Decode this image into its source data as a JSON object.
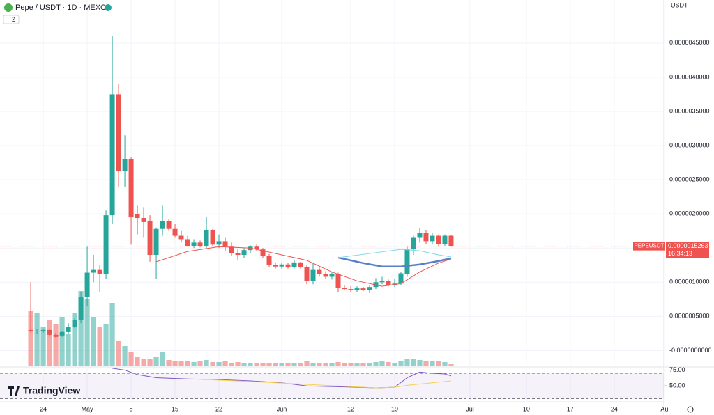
{
  "header": {
    "title": "Pepe / USDT · 1D · MEXC",
    "indicator_count": "2",
    "currency": "USDT",
    "brand": "TradingView"
  },
  "chart_data": {
    "type": "candlestick",
    "x": [
      0,
      1,
      2,
      3,
      4,
      5,
      6,
      7,
      8,
      9,
      10,
      11,
      12,
      13,
      14,
      15,
      16,
      17,
      18,
      19,
      20,
      21,
      22,
      23,
      24,
      25,
      26,
      27,
      28,
      29,
      30,
      31,
      32,
      33,
      34,
      35,
      36,
      37,
      38,
      39,
      40,
      41,
      42,
      43,
      44,
      45,
      46,
      47,
      48,
      49,
      50,
      51,
      52,
      53,
      54,
      55,
      56,
      57,
      58,
      59,
      60,
      61,
      62,
      63,
      64,
      65,
      66,
      67
    ],
    "open": [
      3e-07,
      2.8e-07,
      2.9e-07,
      3e-07,
      2.3e-07,
      2.2e-07,
      2.7e-07,
      3.5e-07,
      4.5e-07,
      7.8e-07,
      1.14e-06,
      1.18e-06,
      1.12e-06,
      1.98e-06,
      3.75e-06,
      2.63e-06,
      2.8e-06,
      2e-06,
      1.94e-06,
      1.89e-06,
      1.4e-06,
      1.78e-06,
      1.89e-06,
      1.78e-06,
      1.68e-06,
      1.63e-06,
      1.53e-06,
      1.58e-06,
      1.53e-06,
      1.76e-06,
      1.55e-06,
      1.6e-06,
      1.52e-06,
      1.43e-06,
      1.4e-06,
      1.47e-06,
      1.52e-06,
      1.48e-06,
      1.39e-06,
      1.25e-06,
      1.23e-06,
      1.26e-06,
      1.22e-06,
      1.29e-06,
      1.22e-06,
      1.02e-06,
      1.18e-06,
      1.12e-06,
      1.08e-06,
      1.12e-06,
      9.2e-07,
      9e-07,
      8.9e-07,
      9.1e-07,
      8.9e-07,
      9.3e-07,
      1e-06,
      1.02e-06,
      9.6e-07,
      9.8e-07,
      1.12e-06,
      1.48e-06,
      1.65e-06,
      1.72e-06,
      1.6e-06,
      1.68e-06,
      1.56e-06,
      1.68e-06
    ],
    "high": [
      1e-06,
      3.2e-07,
      3.2e-07,
      3.1e-07,
      2.6e-07,
      2.9e-07,
      4e-07,
      4.8e-07,
      8.5e-07,
      1.52e-06,
      1.4e-06,
      1.25e-06,
      2.05e-06,
      4.6e-06,
      3.9e-06,
      3.15e-06,
      2.83e-06,
      2.12e-06,
      2.1e-06,
      1.98e-06,
      1.8e-06,
      2.12e-06,
      1.93e-06,
      1.85e-06,
      1.75e-06,
      1.68e-06,
      1.63e-06,
      1.61e-06,
      1.95e-06,
      1.78e-06,
      1.7e-06,
      1.65e-06,
      1.58e-06,
      1.48e-06,
      1.5e-06,
      1.54e-06,
      1.55e-06,
      1.5e-06,
      1.41e-06,
      1.29e-06,
      1.29e-06,
      1.28e-06,
      1.33e-06,
      1.3e-06,
      1.25e-06,
      1.28e-06,
      1.23e-06,
      1.16e-06,
      1.15e-06,
      1.14e-06,
      9.5e-07,
      9.4e-07,
      9.4e-07,
      9.3e-07,
      9.5e-07,
      1.06e-06,
      1.08e-06,
      1.04e-06,
      1.05e-06,
      1.15e-06,
      1.52e-06,
      1.68e-06,
      1.79e-06,
      1.76e-06,
      1.72e-06,
      1.7e-06,
      1.7e-06,
      1.69e-06
    ],
    "low": [
      2.6e-07,
      2.4e-07,
      2.6e-07,
      2e-07,
      1.8e-07,
      2e-07,
      2.5e-07,
      3.3e-07,
      4e-07,
      6.5e-07,
      1e-06,
      8.6e-07,
      1.05e-06,
      1.85e-06,
      2.4e-06,
      2.4e-06,
      1.55e-06,
      1.7e-06,
      1.65e-06,
      1.3e-06,
      1.05e-06,
      1.68e-06,
      1.75e-06,
      1.65e-06,
      1.58e-06,
      1.52e-06,
      1.5e-06,
      1.51e-06,
      1.5e-06,
      1.52e-06,
      1.5e-06,
      1.46e-06,
      1.38e-06,
      1.33e-06,
      1.36e-06,
      1.43e-06,
      1.46e-06,
      1.36e-06,
      1.22e-06,
      1.2e-06,
      1.19e-06,
      1.2e-06,
      1.2e-06,
      1.2e-06,
      9.7e-07,
      9.7e-07,
      1.08e-06,
      1.05e-06,
      1.04e-06,
      8.5e-07,
      8.8e-07,
      8.6e-07,
      8.6e-07,
      8.7e-07,
      8.4e-07,
      9e-07,
      9.7e-07,
      9.4e-07,
      9.3e-07,
      9.6e-07,
      1.08e-06,
      1.4e-06,
      1.58e-06,
      1.56e-06,
      1.55e-06,
      1.52e-06,
      1.53e-06,
      1.52e-06
    ],
    "close": [
      2.8e-07,
      2.9e-07,
      3e-07,
      2.3e-07,
      2e-07,
      2.7e-07,
      3.5e-07,
      4.5e-07,
      7.8e-07,
      1.14e-06,
      1.18e-06,
      1.12e-06,
      1.98e-06,
      3.75e-06,
      2.63e-06,
      2.8e-06,
      1.95e-06,
      1.94e-06,
      1.88e-06,
      1.4e-06,
      1.78e-06,
      1.89e-06,
      1.78e-06,
      1.68e-06,
      1.63e-06,
      1.53e-06,
      1.58e-06,
      1.53e-06,
      1.76e-06,
      1.55e-06,
      1.6e-06,
      1.52e-06,
      1.43e-06,
      1.4e-06,
      1.47e-06,
      1.52e-06,
      1.48e-06,
      1.39e-06,
      1.25e-06,
      1.23e-06,
      1.26e-06,
      1.22e-06,
      1.29e-06,
      1.22e-06,
      1.02e-06,
      1.18e-06,
      1.12e-06,
      1.08e-06,
      1.12e-06,
      9.2e-07,
      9e-07,
      8.9e-07,
      9.1e-07,
      8.9e-07,
      9.3e-07,
      1e-06,
      1.02e-06,
      9.6e-07,
      9.8e-07,
      1.13e-06,
      1.48e-06,
      1.65e-06,
      1.72e-06,
      1.6e-06,
      1.68e-06,
      1.56e-06,
      1.68e-06,
      1.5263e-06
    ],
    "volume": [
      78,
      75,
      55,
      65,
      60,
      70,
      45,
      75,
      107,
      95,
      70,
      55,
      60,
      90,
      35,
      28,
      20,
      12,
      10,
      10,
      13,
      20,
      8,
      7,
      6,
      7,
      5,
      6,
      8,
      5,
      5,
      6,
      4,
      5,
      4,
      4,
      3,
      4,
      4,
      3,
      3,
      3,
      4,
      3,
      6,
      4,
      4,
      3,
      4,
      5,
      4,
      3,
      3,
      4,
      4,
      5,
      6,
      5,
      4,
      6,
      9,
      10,
      8,
      7,
      6,
      6,
      5,
      2
    ],
    "up_color": "#26a69a",
    "down_color": "#ef5350",
    "xlim": [
      -4.9,
      100.9
    ],
    "xticks": [
      {
        "value": 2,
        "label": "24"
      },
      {
        "value": 9,
        "label": "May"
      },
      {
        "value": 16,
        "label": "8"
      },
      {
        "value": 23,
        "label": "15"
      },
      {
        "value": 30,
        "label": "22"
      },
      {
        "value": 40,
        "label": "Jun"
      },
      {
        "value": 51,
        "label": "12"
      },
      {
        "value": 58,
        "label": "19"
      },
      {
        "value": 70,
        "label": "Jul"
      },
      {
        "value": 79,
        "label": "10"
      },
      {
        "value": 86,
        "label": "17"
      },
      {
        "value": 93,
        "label": "24"
      },
      {
        "value": 101,
        "label": "Au"
      }
    ],
    "ylim": [
      -2.2e-07,
      5.13e-06
    ],
    "yticks": [
      {
        "value": 0,
        "label": "-0.0000000000"
      },
      {
        "value": 5e-07,
        "label": "0.0000005000"
      },
      {
        "value": 1e-06,
        "label": "0.0000010000"
      },
      {
        "value": 1.5e-06,
        "label": "0.0000015000"
      },
      {
        "value": 2e-06,
        "label": "0.0000020000"
      },
      {
        "value": 2.5e-06,
        "label": "0.0000025000"
      },
      {
        "value": 3e-06,
        "label": "0.0000030000"
      },
      {
        "value": 3.5e-06,
        "label": "0.0000035000"
      },
      {
        "value": 4e-06,
        "label": "0.0000040000"
      },
      {
        "value": 4.5e-06,
        "label": "0.0000045000"
      }
    ],
    "grid": true,
    "lines": [
      {
        "color": "#ef5350",
        "width": 1,
        "x": [
          20,
          25,
          30,
          35,
          40,
          44,
          48,
          52,
          56,
          59,
          62,
          65,
          67
        ],
        "values": [
          1.3e-06,
          1.45e-06,
          1.52e-06,
          1.5e-06,
          1.4e-06,
          1.32e-06,
          1.15e-06,
          1.02e-06,
          9.4e-07,
          9.8e-07,
          1.15e-06,
          1.28e-06,
          1.34e-06
        ]
      },
      {
        "color": "#5b7fc7",
        "width": 2.5,
        "x": [
          49,
          53,
          56,
          59,
          62,
          65,
          67
        ],
        "values": [
          1.36e-06,
          1.28e-06,
          1.23e-06,
          1.23e-06,
          1.26e-06,
          1.31e-06,
          1.35e-06
        ]
      },
      {
        "color": "#7fd8e6",
        "width": 1,
        "x": [
          49,
          54,
          59,
          62,
          65,
          67
        ],
        "values": [
          1.36e-06,
          1.42e-06,
          1.48e-06,
          1.46e-06,
          1.4e-06,
          1.37e-06
        ]
      }
    ],
    "last_price": {
      "value": 1.5263e-06,
      "label": "0.0000015263"
    },
    "symbol": "PEPEUSDT",
    "countdown": "16:34:13",
    "rsi": {
      "ylim": [
        25,
        80
      ],
      "yticks": [
        {
          "value": 75,
          "label": "75.00"
        },
        {
          "value": 50,
          "label": "50.00"
        }
      ],
      "bands": [
        70,
        30
      ],
      "lines": [
        {
          "color": "#7e57c2",
          "x": [
            13,
            15,
            17,
            20,
            25,
            30,
            35,
            40,
            44,
            48,
            52,
            55,
            58,
            60,
            62,
            64,
            66,
            67
          ],
          "values": [
            78,
            75,
            68,
            63,
            61,
            60,
            58,
            55,
            50,
            49,
            48,
            47,
            48,
            63,
            72,
            70,
            69,
            66
          ]
        },
        {
          "color": "#f7d154",
          "x": [
            28,
            35,
            45,
            55,
            58,
            60,
            63,
            67
          ],
          "values": [
            60,
            57,
            52,
            47,
            48,
            51,
            54,
            58
          ]
        }
      ]
    }
  }
}
